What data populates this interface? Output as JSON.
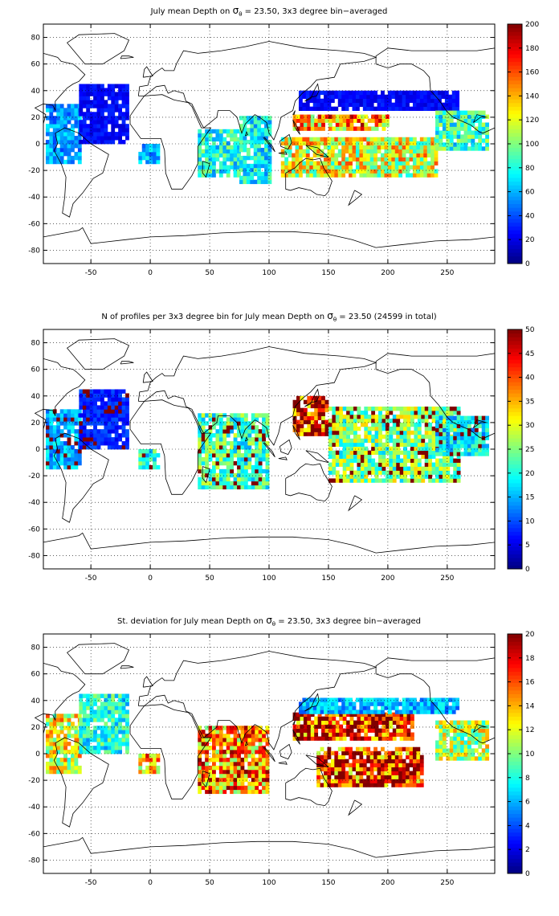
{
  "panels": [
    {
      "title_pre": "July mean Depth on ",
      "title_sym": "σ",
      "title_sub": "θ",
      "title_post": " = 23.50, 3x3 degree bin−averaged",
      "colorbar_ticks": [
        "0",
        "20",
        "40",
        "60",
        "80",
        "100",
        "120",
        "140",
        "160",
        "180",
        "200"
      ]
    },
    {
      "title_pre": "N of profiles per 3x3 degree bin for July mean Depth on ",
      "title_sym": "σ",
      "title_sub": "θ",
      "title_post": " = 23.50 (24599 in total)",
      "colorbar_ticks": [
        "0",
        "5",
        "10",
        "15",
        "20",
        "25",
        "30",
        "35",
        "40",
        "45",
        "50"
      ]
    },
    {
      "title_pre": "St. deviation for July mean Depth on ",
      "title_sym": "σ",
      "title_sub": "θ",
      "title_post": " = 23.50, 3x3 degree bin−averaged",
      "colorbar_ticks": [
        "0",
        "2",
        "4",
        "6",
        "8",
        "10",
        "12",
        "14",
        "16",
        "18",
        "20"
      ]
    }
  ],
  "chart_data": [
    {
      "type": "heatmap",
      "title": "July mean Depth on σθ = 23.50, 3x3 degree bin−averaged",
      "xlim": [
        -90,
        290
      ],
      "ylim": [
        -90,
        90
      ],
      "xticks": [
        -50,
        0,
        50,
        100,
        150,
        200,
        250
      ],
      "yticks": [
        -80,
        -60,
        -40,
        -20,
        0,
        20,
        40,
        60,
        80
      ],
      "grid": true,
      "bin_size_deg": 3,
      "colorbar": {
        "min": 0,
        "max": 200,
        "colormap": "jet"
      },
      "regions": [
        {
          "lon": [
            -88,
            -60
          ],
          "lat": [
            -15,
            30
          ],
          "value": 55
        },
        {
          "lon": [
            -60,
            -20
          ],
          "lat": [
            0,
            45
          ],
          "value": 25
        },
        {
          "lon": [
            -10,
            8
          ],
          "lat": [
            -15,
            0
          ],
          "value": 60
        },
        {
          "lon": [
            40,
            75
          ],
          "lat": [
            -25,
            10
          ],
          "value": 80
        },
        {
          "lon": [
            75,
            100
          ],
          "lat": [
            -30,
            20
          ],
          "value": 75
        },
        {
          "lon": [
            110,
            240
          ],
          "lat": [
            -25,
            5
          ],
          "value": 120
        },
        {
          "lon": [
            120,
            200
          ],
          "lat": [
            10,
            22
          ],
          "value": 145
        },
        {
          "lon": [
            125,
            260
          ],
          "lat": [
            25,
            40
          ],
          "value": 25
        },
        {
          "lon": [
            240,
            285
          ],
          "lat": [
            -5,
            25
          ],
          "value": 85
        }
      ]
    },
    {
      "type": "heatmap",
      "title": "N of profiles per 3x3 degree bin for July mean Depth on σθ = 23.50 (24599 in total)",
      "xlim": [
        -90,
        290
      ],
      "ylim": [
        -90,
        90
      ],
      "xticks": [
        -50,
        0,
        50,
        100,
        150,
        200,
        250
      ],
      "yticks": [
        -80,
        -60,
        -40,
        -20,
        0,
        20,
        40,
        60,
        80
      ],
      "grid": true,
      "bin_size_deg": 3,
      "total_profiles": 24599,
      "colorbar": {
        "min": 0,
        "max": 50,
        "colormap": "jet"
      },
      "regions": [
        {
          "lon": [
            -88,
            -60
          ],
          "lat": [
            -15,
            30
          ],
          "value": 15
        },
        {
          "lon": [
            -60,
            -20
          ],
          "lat": [
            0,
            45
          ],
          "value": 8
        },
        {
          "lon": [
            -10,
            8
          ],
          "lat": [
            -15,
            0
          ],
          "value": 20
        },
        {
          "lon": [
            40,
            100
          ],
          "lat": [
            -30,
            25
          ],
          "value": 22
        },
        {
          "lon": [
            120,
            150
          ],
          "lat": [
            10,
            40
          ],
          "value": 45
        },
        {
          "lon": [
            150,
            260
          ],
          "lat": [
            -25,
            30
          ],
          "value": 25
        },
        {
          "lon": [
            240,
            285
          ],
          "lat": [
            -5,
            25
          ],
          "value": 18
        }
      ]
    },
    {
      "type": "heatmap",
      "title": "St. deviation for July mean Depth on σθ = 23.50, 3x3 degree bin−averaged",
      "xlim": [
        -90,
        290
      ],
      "ylim": [
        -90,
        90
      ],
      "xticks": [
        -50,
        0,
        50,
        100,
        150,
        200,
        250
      ],
      "yticks": [
        -80,
        -60,
        -40,
        -20,
        0,
        20,
        40,
        60,
        80
      ],
      "grid": true,
      "bin_size_deg": 3,
      "colorbar": {
        "min": 0,
        "max": 20,
        "colormap": "jet"
      },
      "regions": [
        {
          "lon": [
            -88,
            -60
          ],
          "lat": [
            -15,
            30
          ],
          "value": 12
        },
        {
          "lon": [
            -60,
            -20
          ],
          "lat": [
            0,
            45
          ],
          "value": 8
        },
        {
          "lon": [
            -10,
            8
          ],
          "lat": [
            -15,
            0
          ],
          "value": 14
        },
        {
          "lon": [
            40,
            100
          ],
          "lat": [
            -30,
            20
          ],
          "value": 15
        },
        {
          "lon": [
            120,
            220
          ],
          "lat": [
            10,
            30
          ],
          "value": 18
        },
        {
          "lon": [
            140,
            230
          ],
          "lat": [
            -25,
            5
          ],
          "value": 17
        },
        {
          "lon": [
            125,
            260
          ],
          "lat": [
            30,
            40
          ],
          "value": 6
        },
        {
          "lon": [
            240,
            285
          ],
          "lat": [
            -5,
            25
          ],
          "value": 11
        }
      ]
    }
  ]
}
